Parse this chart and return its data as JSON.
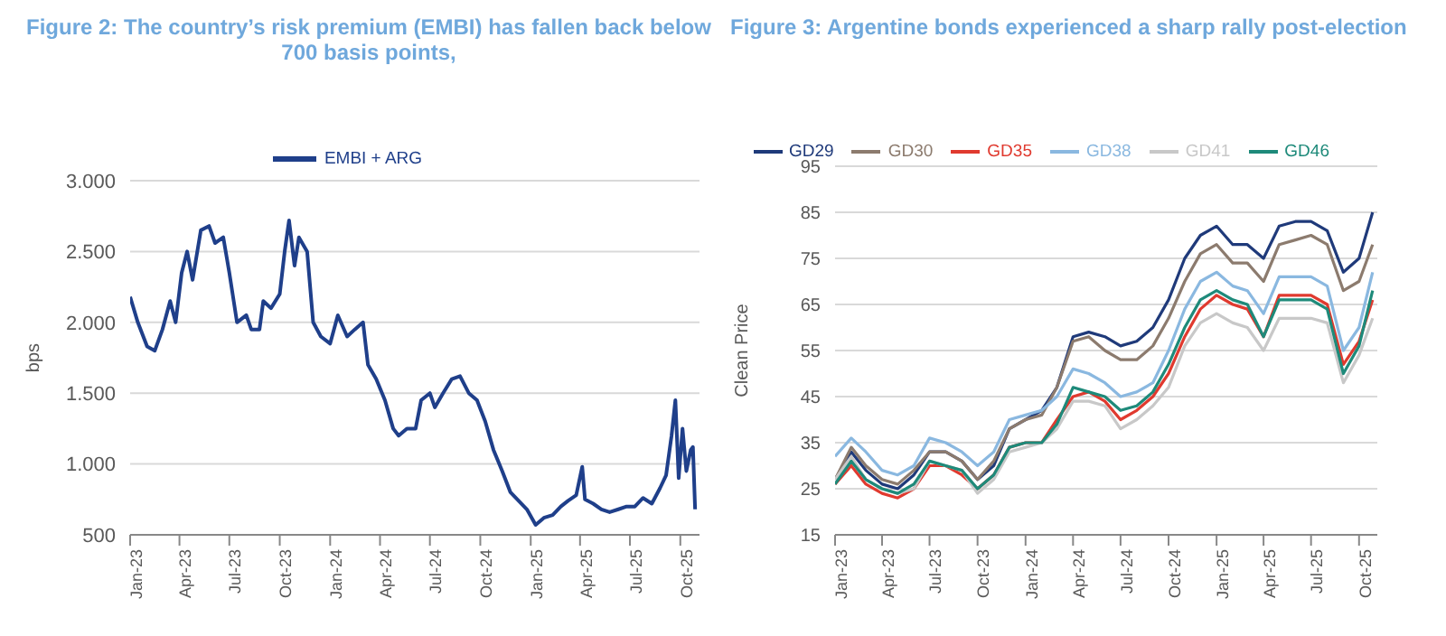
{
  "chart_data": [
    {
      "type": "line",
      "title": "Figure 2: The country’s risk premium (EMBI) has fallen back below 700 basis points,",
      "ylabel": "bps",
      "legend": "top",
      "grid": "y",
      "x": [
        "2023-01-01",
        "2023-01-15",
        "2023-02-01",
        "2023-02-15",
        "2023-03-01",
        "2023-03-15",
        "2023-03-25",
        "2023-04-05",
        "2023-04-15",
        "2023-04-25",
        "2023-05-10",
        "2023-05-25",
        "2023-06-05",
        "2023-06-20",
        "2023-07-01",
        "2023-07-15",
        "2023-08-01",
        "2023-08-10",
        "2023-08-25",
        "2023-09-01",
        "2023-09-15",
        "2023-10-01",
        "2023-10-10",
        "2023-10-18",
        "2023-10-28",
        "2023-11-05",
        "2023-11-20",
        "2023-12-01",
        "2023-12-15",
        "2024-01-01",
        "2024-01-15",
        "2024-02-01",
        "2024-02-15",
        "2024-03-01",
        "2024-03-10",
        "2024-03-25",
        "2024-04-10",
        "2024-04-25",
        "2024-05-05",
        "2024-05-20",
        "2024-06-05",
        "2024-06-15",
        "2024-07-01",
        "2024-07-10",
        "2024-07-25",
        "2024-08-10",
        "2024-08-25",
        "2024-09-10",
        "2024-09-25",
        "2024-10-10",
        "2024-10-25",
        "2024-11-10",
        "2024-11-25",
        "2024-12-10",
        "2024-12-25",
        "2025-01-10",
        "2025-01-25",
        "2025-02-10",
        "2025-02-25",
        "2025-03-10",
        "2025-03-25",
        "2025-04-05",
        "2025-04-10",
        "2025-04-25",
        "2025-05-10",
        "2025-05-25",
        "2025-06-10",
        "2025-06-25",
        "2025-07-10",
        "2025-07-25",
        "2025-08-10",
        "2025-08-25",
        "2025-09-05",
        "2025-09-15",
        "2025-09-22",
        "2025-09-28",
        "2025-10-05",
        "2025-10-12",
        "2025-10-20",
        "2025-10-24",
        "2025-10-28"
      ],
      "series": [
        {
          "name": "EMBI + ARG",
          "color": "#1f3f8a",
          "values": [
            2180,
            2000,
            1830,
            1800,
            1950,
            2150,
            2000,
            2350,
            2500,
            2300,
            2650,
            2680,
            2560,
            2600,
            2350,
            2000,
            2050,
            1950,
            1950,
            2150,
            2100,
            2200,
            2500,
            2720,
            2400,
            2600,
            2500,
            2000,
            1900,
            1850,
            2050,
            1900,
            1950,
            2000,
            1700,
            1600,
            1450,
            1250,
            1200,
            1250,
            1250,
            1450,
            1500,
            1400,
            1500,
            1600,
            1620,
            1500,
            1450,
            1300,
            1100,
            950,
            800,
            740,
            680,
            570,
            620,
            640,
            700,
            740,
            780,
            980,
            750,
            720,
            680,
            660,
            680,
            700,
            700,
            760,
            720,
            830,
            920,
            1200,
            1450,
            900,
            1250,
            950,
            1100,
            1120,
            680
          ]
        }
      ],
      "xlim": [
        "2023-01-01",
        "2025-11-05"
      ],
      "xticks": [
        {
          "value": "2023-01-01",
          "label": "Jan-23"
        },
        {
          "value": "2023-04-01",
          "label": "Apr-23"
        },
        {
          "value": "2023-07-01",
          "label": "Jul-23"
        },
        {
          "value": "2023-10-01",
          "label": "Oct-23"
        },
        {
          "value": "2024-01-01",
          "label": "Jan-24"
        },
        {
          "value": "2024-04-01",
          "label": "Apr-24"
        },
        {
          "value": "2024-07-01",
          "label": "Jul-24"
        },
        {
          "value": "2024-10-01",
          "label": "Oct-24"
        },
        {
          "value": "2025-01-01",
          "label": "Jan-25"
        },
        {
          "value": "2025-04-01",
          "label": "Apr-25"
        },
        {
          "value": "2025-07-01",
          "label": "Jul-25"
        },
        {
          "value": "2025-10-01",
          "label": "Oct-25"
        }
      ],
      "ylim": [
        500,
        3000
      ],
      "yticks": [
        {
          "value": 500,
          "label": "500"
        },
        {
          "value": 1000,
          "label": "1.000"
        },
        {
          "value": 1500,
          "label": "1.500"
        },
        {
          "value": 2000,
          "label": "2.000"
        },
        {
          "value": 2500,
          "label": "2.500"
        },
        {
          "value": 3000,
          "label": "3.000"
        }
      ]
    },
    {
      "type": "line",
      "title": "Figure 3: Argentine bonds experienced a sharp rally post-election",
      "ylabel": "Clean Price",
      "legend": "top",
      "grid": "y",
      "x": [
        "2023-01-01",
        "2023-02-01",
        "2023-03-01",
        "2023-04-01",
        "2023-05-01",
        "2023-06-01",
        "2023-07-01",
        "2023-08-01",
        "2023-09-01",
        "2023-10-01",
        "2023-11-01",
        "2023-12-01",
        "2024-01-01",
        "2024-02-01",
        "2024-03-01",
        "2024-04-01",
        "2024-05-01",
        "2024-06-01",
        "2024-07-01",
        "2024-08-01",
        "2024-09-01",
        "2024-10-01",
        "2024-11-01",
        "2024-12-01",
        "2025-01-01",
        "2025-02-01",
        "2025-03-01",
        "2025-04-01",
        "2025-05-01",
        "2025-06-01",
        "2025-07-01",
        "2025-08-01",
        "2025-09-01",
        "2025-10-01",
        "2025-10-27"
      ],
      "series": [
        {
          "name": "GD29",
          "color": "#1f3a7a",
          "values": [
            27,
            33,
            29,
            26,
            25,
            28,
            33,
            33,
            31,
            27,
            30,
            38,
            40,
            42,
            47,
            58,
            59,
            58,
            56,
            57,
            60,
            66,
            75,
            80,
            82,
            78,
            78,
            75,
            82,
            83,
            83,
            81,
            72,
            75,
            85
          ]
        },
        {
          "name": "GD30",
          "color": "#8c7b6e",
          "values": [
            27,
            34,
            30,
            27,
            26,
            29,
            33,
            33,
            31,
            27,
            31,
            38,
            40,
            41,
            47,
            57,
            58,
            55,
            53,
            53,
            56,
            62,
            70,
            76,
            78,
            74,
            74,
            70,
            78,
            79,
            80,
            78,
            68,
            70,
            78
          ]
        },
        {
          "name": "GD35",
          "color": "#e03a2f",
          "values": [
            26,
            30,
            26,
            24,
            23,
            25,
            30,
            30,
            28,
            25,
            28,
            34,
            35,
            35,
            40,
            45,
            46,
            44,
            40,
            42,
            45,
            50,
            58,
            64,
            67,
            65,
            64,
            58,
            67,
            67,
            67,
            65,
            52,
            57,
            66
          ]
        },
        {
          "name": "GD38",
          "color": "#8ab8e0",
          "values": [
            32,
            36,
            33,
            29,
            28,
            30,
            36,
            35,
            33,
            30,
            33,
            40,
            41,
            42,
            45,
            51,
            50,
            48,
            45,
            46,
            48,
            55,
            64,
            70,
            72,
            69,
            68,
            63,
            71,
            71,
            71,
            69,
            55,
            60,
            72
          ]
        },
        {
          "name": "GD41",
          "color": "#c8c8c8",
          "values": [
            27,
            32,
            27,
            25,
            24,
            25,
            31,
            30,
            29,
            24,
            27,
            33,
            34,
            35,
            38,
            44,
            44,
            43,
            38,
            40,
            43,
            47,
            56,
            61,
            63,
            61,
            60,
            55,
            62,
            62,
            62,
            61,
            48,
            54,
            62
          ]
        },
        {
          "name": "GD46",
          "color": "#1e8a7a",
          "values": [
            26,
            31,
            27,
            25,
            24,
            26,
            31,
            30,
            29,
            25,
            28,
            34,
            35,
            35,
            39,
            47,
            46,
            45,
            42,
            43,
            46,
            52,
            60,
            66,
            68,
            66,
            65,
            58,
            66,
            66,
            66,
            64,
            50,
            56,
            68
          ]
        }
      ],
      "xlim": [
        "2023-01-01",
        "2025-11-05"
      ],
      "xticks": [
        {
          "value": "2023-01-01",
          "label": "Jan-23"
        },
        {
          "value": "2023-04-01",
          "label": "Apr-23"
        },
        {
          "value": "2023-07-01",
          "label": "Jul-23"
        },
        {
          "value": "2023-10-01",
          "label": "Oct-23"
        },
        {
          "value": "2024-01-01",
          "label": "Jan-24"
        },
        {
          "value": "2024-04-01",
          "label": "Apr-24"
        },
        {
          "value": "2024-07-01",
          "label": "Jul-24"
        },
        {
          "value": "2024-10-01",
          "label": "Oct-24"
        },
        {
          "value": "2025-01-01",
          "label": "Jan-25"
        },
        {
          "value": "2025-04-01",
          "label": "Apr-25"
        },
        {
          "value": "2025-07-01",
          "label": "Jul-25"
        },
        {
          "value": "2025-10-01",
          "label": "Oct-25"
        }
      ],
      "ylim": [
        15,
        95
      ],
      "yticks": [
        15,
        25,
        35,
        45,
        55,
        65,
        75,
        85,
        95
      ]
    }
  ]
}
